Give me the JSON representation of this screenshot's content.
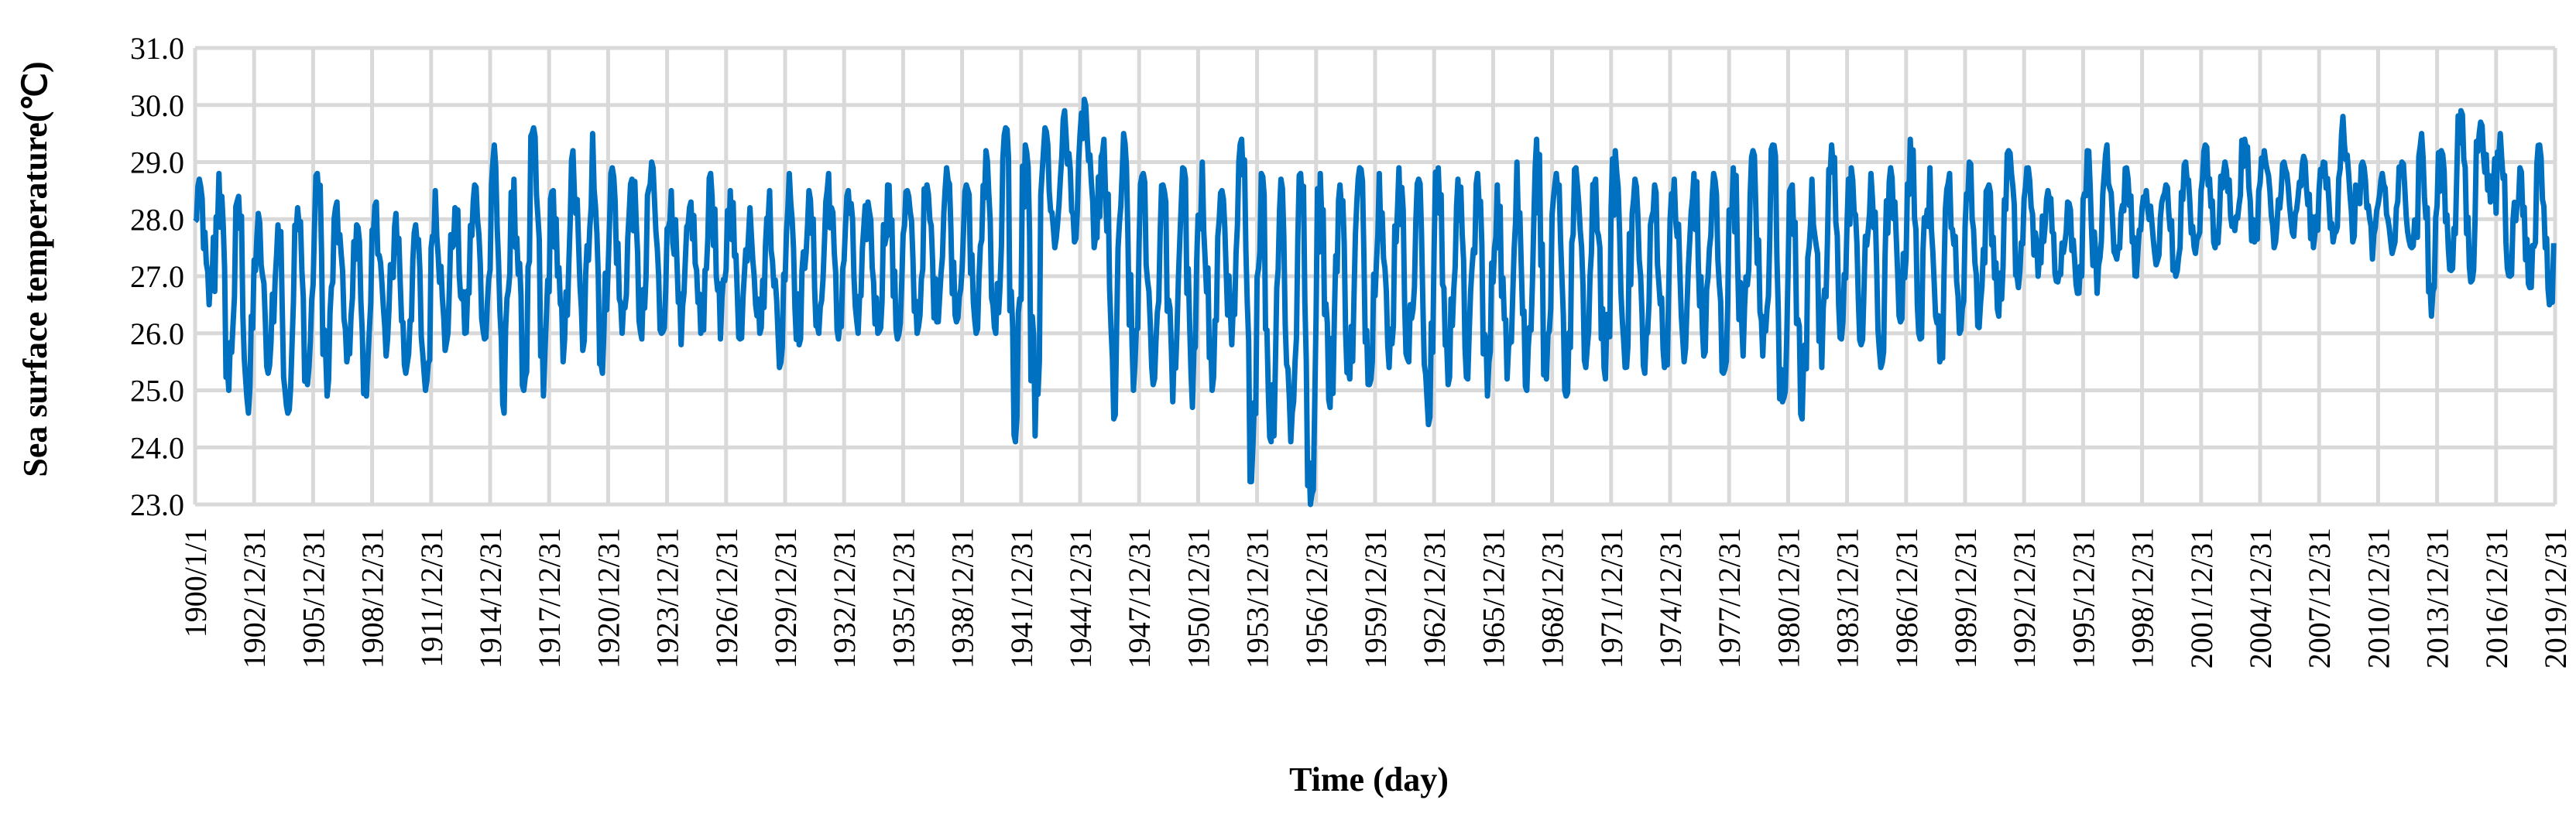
{
  "chart_data": {
    "type": "line",
    "title": "",
    "xlabel": "Time (day)",
    "ylabel": "Sea surface temperature(℃)",
    "ylim": [
      23.0,
      31.0
    ],
    "y_ticks": [
      "23.0",
      "24.0",
      "25.0",
      "26.0",
      "27.0",
      "28.0",
      "29.0",
      "30.0",
      "31.0"
    ],
    "x_range": [
      "1900/1/1",
      "2019/12/31"
    ],
    "x_ticks": [
      "1900/1/1",
      "1902/12/31",
      "1905/12/31",
      "1908/12/31",
      "1911/12/31",
      "1914/12/31",
      "1917/12/31",
      "1920/12/31",
      "1923/12/31",
      "1926/12/31",
      "1929/12/31",
      "1932/12/31",
      "1935/12/31",
      "1938/12/31",
      "1941/12/31",
      "1944/12/31",
      "1947/12/31",
      "1950/12/31",
      "1953/12/31",
      "1956/12/31",
      "1959/12/31",
      "1962/12/31",
      "1965/12/31",
      "1968/12/31",
      "1971/12/31",
      "1974/12/31",
      "1977/12/31",
      "1980/12/31",
      "1983/12/31",
      "1986/12/31",
      "1989/12/31",
      "1992/12/31",
      "1995/12/31",
      "1998/12/31",
      "2001/12/31",
      "2004/12/31",
      "2007/12/31",
      "2010/12/31",
      "2013/12/31",
      "2016/12/31",
      "2019/12/31"
    ],
    "grid": true,
    "legend": "none",
    "series_color": "#0070c0",
    "annual_cycles": {
      "years": [
        1900,
        1901,
        1902,
        1903,
        1904,
        1905,
        1906,
        1907,
        1908,
        1909,
        1910,
        1911,
        1912,
        1913,
        1914,
        1915,
        1916,
        1917,
        1918,
        1919,
        1920,
        1921,
        1922,
        1923,
        1924,
        1925,
        1926,
        1927,
        1928,
        1929,
        1930,
        1931,
        1932,
        1933,
        1934,
        1935,
        1936,
        1937,
        1938,
        1939,
        1940,
        1941,
        1942,
        1943,
        1944,
        1945,
        1946,
        1947,
        1948,
        1949,
        1950,
        1951,
        1952,
        1953,
        1954,
        1955,
        1956,
        1957,
        1958,
        1959,
        1960,
        1961,
        1962,
        1963,
        1964,
        1965,
        1966,
        1967,
        1968,
        1969,
        1970,
        1971,
        1972,
        1973,
        1974,
        1975,
        1976,
        1977,
        1978,
        1979,
        1980,
        1981,
        1982,
        1983,
        1984,
        1985,
        1986,
        1987,
        1988,
        1989,
        1990,
        1991,
        1992,
        1993,
        1994,
        1995,
        1996,
        1997,
        1998,
        1999,
        2000,
        2001,
        2002,
        2003,
        2004,
        2005,
        2006,
        2007,
        2008,
        2009,
        2010,
        2011,
        2012,
        2013,
        2014,
        2015,
        2016,
        2017,
        2018,
        2019
      ],
      "min": [
        26.5,
        25.0,
        24.6,
        25.3,
        24.6,
        25.1,
        24.9,
        25.5,
        24.9,
        25.6,
        25.3,
        25.0,
        25.7,
        26.0,
        25.9,
        24.6,
        25.0,
        24.9,
        25.5,
        25.7,
        25.3,
        26.0,
        25.9,
        26.0,
        25.8,
        26.0,
        25.9,
        25.9,
        26.0,
        25.4,
        25.8,
        26.0,
        25.9,
        26.0,
        26.0,
        25.9,
        26.0,
        26.2,
        26.2,
        26.0,
        26.0,
        24.1,
        24.2,
        27.5,
        27.6,
        27.5,
        24.5,
        25.0,
        25.1,
        24.8,
        24.7,
        25.0,
        25.8,
        23.4,
        24.1,
        24.1,
        23.0,
        24.7,
        25.2,
        25.1,
        25.4,
        25.5,
        24.4,
        25.1,
        25.2,
        24.9,
        25.2,
        25.0,
        25.2,
        24.9,
        25.4,
        25.2,
        25.4,
        25.3,
        25.4,
        25.5,
        25.6,
        25.3,
        25.6,
        25.6,
        24.8,
        24.5,
        25.4,
        25.9,
        25.8,
        25.4,
        26.2,
        25.9,
        25.5,
        26.0,
        26.1,
        26.3,
        26.8,
        27.0,
        26.9,
        26.7,
        26.7,
        27.3,
        27.0,
        27.2,
        27.0,
        27.4,
        27.5,
        27.8,
        27.6,
        27.5,
        27.7,
        27.5,
        27.6,
        27.6,
        27.3,
        27.4,
        27.5,
        26.3,
        27.1,
        26.9,
        28.3,
        27.0,
        26.8,
        26.5
      ],
      "max": [
        28.7,
        28.8,
        28.4,
        28.1,
        27.9,
        28.2,
        28.8,
        28.3,
        27.9,
        28.3,
        28.1,
        27.9,
        28.5,
        28.2,
        28.6,
        29.3,
        28.7,
        29.6,
        28.5,
        29.2,
        29.5,
        28.9,
        28.7,
        29.0,
        28.5,
        28.3,
        28.8,
        28.5,
        28.2,
        28.5,
        28.8,
        28.5,
        28.8,
        28.5,
        28.3,
        28.6,
        28.5,
        28.6,
        28.9,
        28.6,
        29.2,
        29.6,
        29.3,
        29.6,
        29.9,
        30.1,
        29.4,
        29.5,
        28.8,
        28.6,
        28.9,
        29.0,
        28.5,
        29.4,
        28.8,
        28.7,
        28.8,
        28.8,
        28.6,
        28.9,
        28.8,
        28.9,
        28.7,
        28.9,
        28.7,
        28.8,
        28.6,
        29.0,
        29.4,
        28.8,
        28.9,
        28.7,
        29.2,
        28.7,
        28.6,
        28.7,
        28.8,
        28.8,
        28.9,
        29.2,
        29.3,
        28.6,
        28.7,
        29.3,
        28.9,
        28.8,
        28.9,
        29.4,
        28.9,
        28.8,
        29.0,
        28.6,
        29.2,
        28.9,
        28.5,
        28.3,
        29.2,
        29.3,
        28.9,
        28.5,
        28.6,
        29.0,
        29.3,
        29.0,
        29.4,
        29.2,
        29.0,
        29.1,
        29.0,
        29.8,
        29.0,
        28.8,
        29.0,
        29.5,
        29.2,
        29.9,
        29.7,
        29.5,
        28.9,
        29.3
      ]
    }
  }
}
